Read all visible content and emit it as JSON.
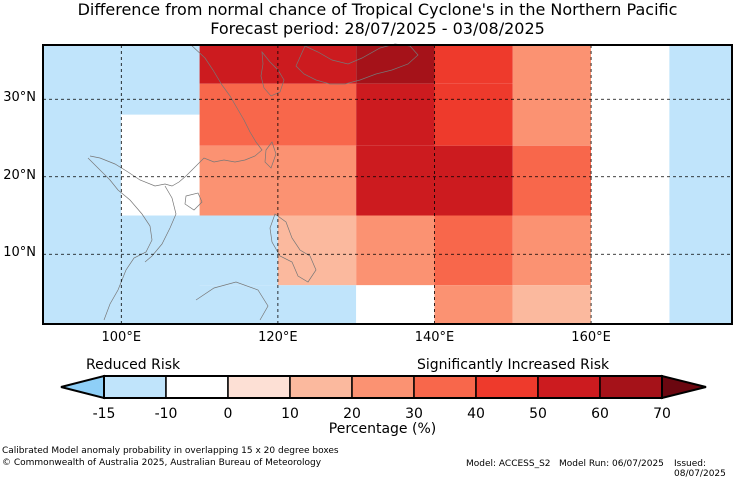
{
  "title_line1": "Difference from normal chance of Tropical Cyclone's in the Northern Pacific",
  "title_line2": "Forecast period: 28/07/2025 - 03/08/2025",
  "map": {
    "lon_range": [
      90,
      178
    ],
    "lat_range": [
      1,
      37
    ],
    "lat_ticks": [
      {
        "lat": 30,
        "label": "30°N"
      },
      {
        "lat": 20,
        "label": "20°N"
      },
      {
        "lat": 10,
        "label": "10°N"
      }
    ],
    "lon_ticks": [
      {
        "lon": 100,
        "label": "100°E"
      },
      {
        "lon": 120,
        "label": "120°E"
      },
      {
        "lon": 140,
        "label": "140°E"
      },
      {
        "lon": 160,
        "label": "160°E"
      }
    ],
    "cells": [
      {
        "lon": [
          90,
          100
        ],
        "lat": [
          15,
          37
        ],
        "value": -12
      },
      {
        "lon": [
          100,
          110
        ],
        "lat": [
          28,
          37
        ],
        "value": -12
      },
      {
        "lon": [
          100,
          110
        ],
        "lat": [
          15,
          28
        ],
        "value": -5
      },
      {
        "lon": [
          110,
          130
        ],
        "lat": [
          32,
          37
        ],
        "value": 55
      },
      {
        "lon": [
          110,
          130
        ],
        "lat": [
          24,
          32
        ],
        "value": 35
      },
      {
        "lon": [
          110,
          130
        ],
        "lat": [
          15,
          24
        ],
        "value": 20
      },
      {
        "lon": [
          130,
          140
        ],
        "lat": [
          32,
          37
        ],
        "value": 65
      },
      {
        "lon": [
          130,
          140
        ],
        "lat": [
          24,
          32
        ],
        "value": 55
      },
      {
        "lon": [
          130,
          140
        ],
        "lat": [
          15,
          24
        ],
        "value": 55
      },
      {
        "lon": [
          140,
          150
        ],
        "lat": [
          32,
          37
        ],
        "value": 45
      },
      {
        "lon": [
          140,
          150
        ],
        "lat": [
          24,
          32
        ],
        "value": 45
      },
      {
        "lon": [
          140,
          150
        ],
        "lat": [
          15,
          24
        ],
        "value": 55
      },
      {
        "lon": [
          150,
          160
        ],
        "lat": [
          24,
          37
        ],
        "value": 20
      },
      {
        "lon": [
          150,
          160
        ],
        "lat": [
          15,
          24
        ],
        "value": 35
      },
      {
        "lon": [
          160,
          170
        ],
        "lat": [
          15,
          37
        ],
        "value": -5
      },
      {
        "lon": [
          170,
          178
        ],
        "lat": [
          20,
          37
        ],
        "value": -12
      },
      {
        "lon": [
          170,
          178
        ],
        "lat": [
          1,
          20
        ],
        "value": -15
      },
      {
        "lon": [
          90,
          100
        ],
        "lat": [
          1,
          15
        ],
        "value": -15
      },
      {
        "lon": [
          100,
          110
        ],
        "lat": [
          1,
          15
        ],
        "value": -15
      },
      {
        "lon": [
          100,
          120
        ],
        "lat": [
          6,
          15
        ],
        "value": -12
      },
      {
        "lon": [
          120,
          130
        ],
        "lat": [
          6,
          15
        ],
        "value": 15
      },
      {
        "lon": [
          130,
          140
        ],
        "lat": [
          6,
          15
        ],
        "value": 25
      },
      {
        "lon": [
          140,
          150
        ],
        "lat": [
          6,
          15
        ],
        "value": 35
      },
      {
        "lon": [
          150,
          160
        ],
        "lat": [
          6,
          15
        ],
        "value": 25
      },
      {
        "lon": [
          160,
          170
        ],
        "lat": [
          1,
          15
        ],
        "value": -5
      },
      {
        "lon": [
          100,
          130
        ],
        "lat": [
          1,
          6
        ],
        "value": -15
      },
      {
        "lon": [
          130,
          140
        ],
        "lat": [
          1,
          6
        ],
        "value": -5
      },
      {
        "lon": [
          140,
          150
        ],
        "lat": [
          1,
          6
        ],
        "value": 20
      },
      {
        "lon": [
          150,
          160
        ],
        "lat": [
          1,
          6
        ],
        "value": 15
      }
    ]
  },
  "colorbar": {
    "left_label": "Reduced Risk",
    "right_label": "Significantly Increased Risk",
    "unit_label": "Percentage (%)",
    "bounds": [
      -15,
      -10,
      0,
      10,
      20,
      30,
      40,
      50,
      60,
      70
    ],
    "tick_labels": [
      "-15",
      "-10",
      "0",
      "10",
      "20",
      "30",
      "40",
      "50",
      "60",
      "70"
    ],
    "under_color": "#8ecff7",
    "over_color": "#6b0710",
    "colors": [
      "#c0e4fb",
      "#ffffff",
      "#fde0d5",
      "#fbb99e",
      "#fb9272",
      "#f8674b",
      "#ee3a2c",
      "#cc1b1f",
      "#a51219"
    ]
  },
  "footer": {
    "left_line1": "Calibrated Model anomaly probability in overlapping 15 x 20 degree boxes",
    "left_line2": "© Commonwealth of Australia 2025, Australian Bureau of Meteorology",
    "model": "Model: ACCESS_S2",
    "model_run": "Model Run: 06/07/2025",
    "issued": "Issued: 08/07/2025"
  }
}
